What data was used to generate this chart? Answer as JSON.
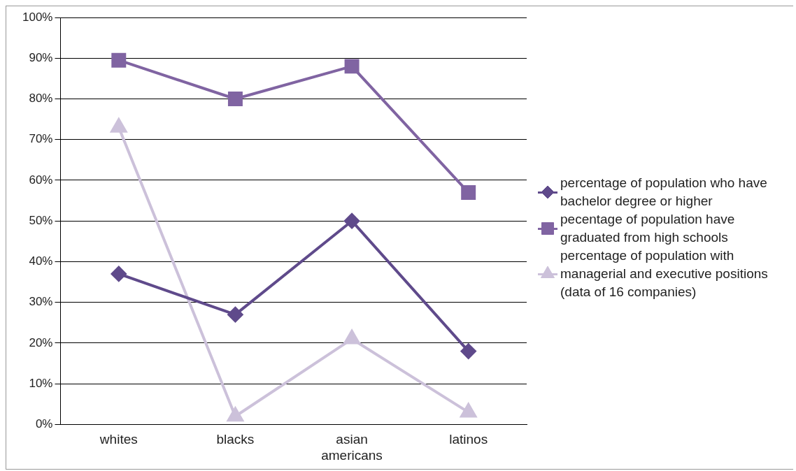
{
  "chart_data": {
    "type": "line",
    "categories": [
      "whites",
      "blacks",
      "asian americans",
      "latinos"
    ],
    "series": [
      {
        "name": "percentage of population who have bachelor degree or higher",
        "color": "#5f4a8b",
        "marker": "diamond",
        "values": [
          37,
          27,
          50,
          18
        ]
      },
      {
        "name": "pecentage of population have graduated from high schools",
        "color": "#8064a2",
        "marker": "square",
        "values": [
          89.5,
          80,
          88,
          57
        ]
      },
      {
        "name": "percentage of population with managerial and executive positions (data of 16 companies)",
        "color": "#ccc1da",
        "marker": "triangle",
        "values": [
          73,
          2,
          21,
          3
        ]
      }
    ],
    "ylim": [
      0,
      100
    ],
    "yticks": [
      {
        "value": 0,
        "label": "0%"
      },
      {
        "value": 10,
        "label": "10%"
      },
      {
        "value": 20,
        "label": "20%"
      },
      {
        "value": 30,
        "label": "30%"
      },
      {
        "value": 40,
        "label": "40%"
      },
      {
        "value": 50,
        "label": "50%"
      },
      {
        "value": 60,
        "label": "60%"
      },
      {
        "value": 70,
        "label": "70%"
      },
      {
        "value": 80,
        "label": "80%"
      },
      {
        "value": 90,
        "label": "90%"
      },
      {
        "value": 100,
        "label": "100%"
      }
    ],
    "grid": "y",
    "legend": "right"
  }
}
